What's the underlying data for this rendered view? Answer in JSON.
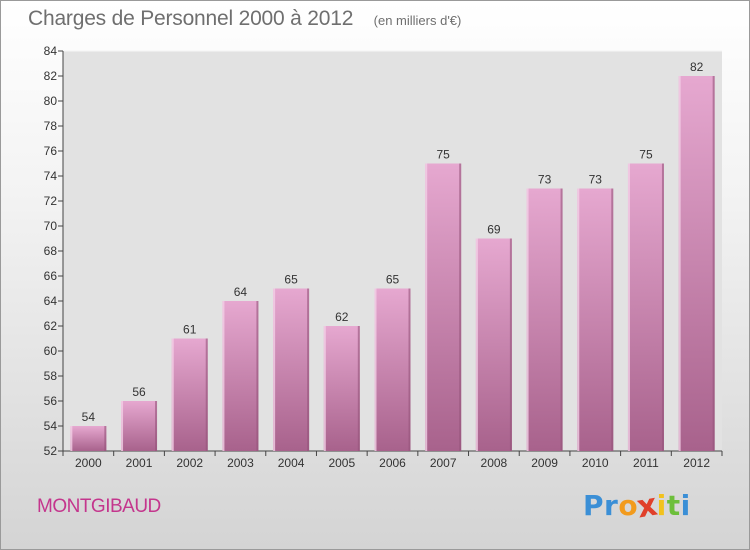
{
  "header": {
    "title": "Charges de Personnel 2000 à 2012",
    "subtitle": "(en milliers d'€)"
  },
  "footer": {
    "town": "MONTGIBAUD",
    "brand_letters": [
      {
        "char": "P",
        "color": "#3b8fd6"
      },
      {
        "char": "r",
        "color": "#3b8fd6"
      },
      {
        "char": "o",
        "color": "#f29b1d"
      },
      {
        "char": "x",
        "color": "#e0402a"
      },
      {
        "char": "i",
        "color": "#f2c21d"
      },
      {
        "char": "t",
        "color": "#6dbf3b"
      },
      {
        "char": "i",
        "color": "#3b8fd6"
      }
    ]
  },
  "chart_data": {
    "type": "bar",
    "categories": [
      "2000",
      "2001",
      "2002",
      "2003",
      "2004",
      "2005",
      "2006",
      "2007",
      "2008",
      "2009",
      "2010",
      "2011",
      "2012"
    ],
    "values": [
      54,
      56,
      61,
      64,
      65,
      62,
      65,
      75,
      69,
      73,
      73,
      75,
      82
    ],
    "ylim": [
      52,
      84
    ],
    "yticks": [
      52,
      54,
      56,
      58,
      60,
      62,
      64,
      66,
      68,
      70,
      72,
      74,
      76,
      78,
      80,
      82,
      84
    ],
    "grid": false,
    "bar_color_top": "#e6a8d0",
    "bar_color_bottom": "#a8628c"
  }
}
